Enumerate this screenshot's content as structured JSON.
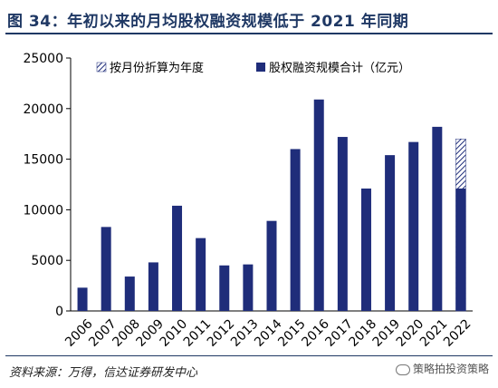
{
  "title": "图 34：年初以来的月均股权融资规模低于 2021 年同期",
  "source": "资料来源：万得，信达证券研发中心",
  "watermark": "策略拍投资策略",
  "colors": {
    "bar": "#1f2d7a",
    "title": "#1f3864"
  },
  "chart_data": {
    "type": "bar",
    "categories": [
      "2006",
      "2007",
      "2008",
      "2009",
      "2010",
      "2011",
      "2012",
      "2013",
      "2014",
      "2015",
      "2016",
      "2017",
      "2018",
      "2019",
      "2020",
      "2021",
      "2022"
    ],
    "series": [
      {
        "name": "股权融资规模合计（亿元）",
        "values": [
          2300,
          8300,
          3400,
          4800,
          10400,
          7200,
          4500,
          4600,
          8900,
          16000,
          20900,
          17200,
          12100,
          15400,
          16700,
          18200,
          12100
        ]
      },
      {
        "name": "按月份折算为年度",
        "values": [
          null,
          null,
          null,
          null,
          null,
          null,
          null,
          null,
          null,
          null,
          null,
          null,
          null,
          null,
          null,
          null,
          17000
        ]
      }
    ],
    "yticks": [
      "0",
      "5000",
      "10000",
      "15000",
      "20000",
      "25000"
    ],
    "ylim": [
      0,
      25000
    ],
    "legend_position": "top",
    "grid": false
  }
}
